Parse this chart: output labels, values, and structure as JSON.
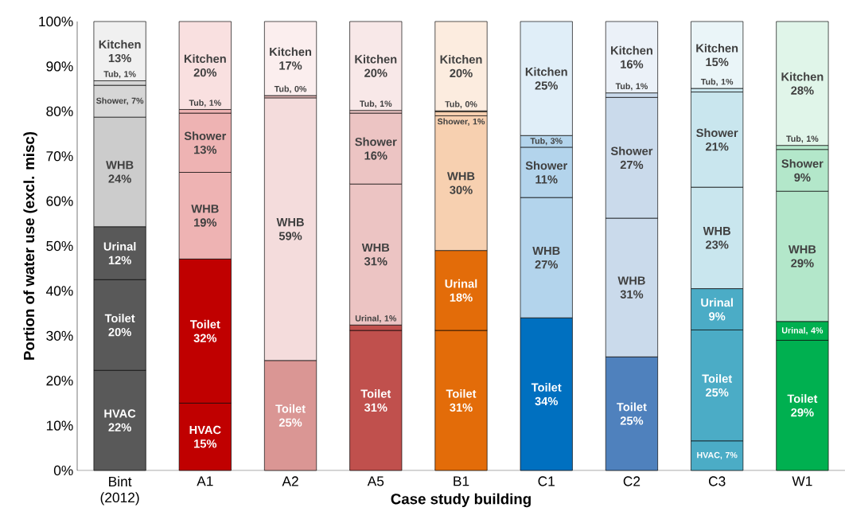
{
  "chart_data": {
    "type": "bar",
    "stacked": true,
    "xlabel": "Case study building",
    "ylabel": "Portion of water use (excl. misc)",
    "categories": [
      "Bint (2012)",
      "A1",
      "A2",
      "A5",
      "B1",
      "C1",
      "C2",
      "C3",
      "W1"
    ],
    "ylim": [
      0,
      100
    ],
    "yticks": [
      {
        "value": 0,
        "label": "0%"
      },
      {
        "value": 10,
        "label": "10%"
      },
      {
        "value": 20,
        "label": "20%"
      },
      {
        "value": 30,
        "label": "30%"
      },
      {
        "value": 40,
        "label": "40%"
      },
      {
        "value": 50,
        "label": "50%"
      },
      {
        "value": 60,
        "label": "60%"
      },
      {
        "value": 70,
        "label": "70%"
      },
      {
        "value": 80,
        "label": "80%"
      },
      {
        "value": 90,
        "label": "90%"
      },
      {
        "value": 100,
        "label": "100%"
      }
    ],
    "series": [
      {
        "colors": [
          "#595959",
          "#c00000",
          "#da9694",
          "#c0504d",
          "#e36c09",
          "#0070c0",
          "#4f81bd",
          "#4bacc6",
          "#00b050"
        ],
        "values": [
          22.3,
          15,
          0,
          0,
          0,
          0,
          0,
          6.6,
          0
        ],
        "value_labels": [
          "HVAC 22%",
          "HVAC 15%",
          null,
          null,
          null,
          null,
          null,
          "HVAC, 7%",
          null
        ]
      },
      {
        "colors": [
          "#595959",
          "#c00000",
          "#da9694",
          "#c0504d",
          "#e36c09",
          "#0070c0",
          "#4f81bd",
          "#4bacc6",
          "#00b050"
        ],
        "values": [
          20.2,
          32.1,
          24.5,
          31.2,
          31.2,
          34,
          25.3,
          24.7,
          29
        ],
        "value_labels": [
          "Toilet 20%",
          "Toilet 32%",
          "Toilet 25%",
          "Toilet 31%",
          "Toilet 31%",
          "Toilet 34%",
          "Toilet 25%",
          "Toilet 25%",
          "Toilet 29%"
        ]
      },
      {
        "colors": [
          "#595959",
          "#c00000",
          "#da9694",
          "#c0504d",
          "#e36c09",
          "#0070c0",
          "#4f81bd",
          "#4bacc6",
          "#00b050"
        ],
        "values": [
          11.8,
          0,
          0,
          1.2,
          17.8,
          0,
          0,
          9.2,
          4.2
        ],
        "value_labels": [
          "Urinal 12%",
          null,
          null,
          "Urinal, 1%",
          "Urinal 18%",
          null,
          null,
          "Urinal 9%",
          "Urinal, 4%"
        ]
      },
      {
        "colors": [
          "#cccccc",
          "#eeb3b3",
          "#f4dcdc",
          "#ecc4c3",
          "#f7d0b0",
          "#b3d4ec",
          "#cadaeb",
          "#c9e6ee",
          "#b3e7ca"
        ],
        "values": [
          24.4,
          19.3,
          58.5,
          31.4,
          30.0,
          26.8,
          30.9,
          22.6,
          29.0
        ],
        "value_labels": [
          "WHB 24%",
          "WHB 19%",
          "WHB 59%",
          "WHB 31%",
          "WHB 30%",
          "WHB 27%",
          "WHB 31%",
          "WHB 23%",
          "WHB 29%"
        ]
      },
      {
        "colors": [
          "#d6d6d6",
          "#eeb3b3",
          "#f4dcdc",
          "#ecc4c3",
          "#f7d0b0",
          "#b3d4ec",
          "#cadaeb",
          "#c9e6ee",
          "#b3e7ca"
        ],
        "values": [
          7.1,
          13.2,
          0,
          15.8,
          0.9,
          11.2,
          26.9,
          21.2,
          9.3
        ],
        "value_labels": [
          "Shower, 7%",
          "Shower 13%",
          null,
          "Shower 16%",
          "Shower, 1%",
          "Shower 11%",
          "Shower 27%",
          "Shower 21%",
          "Shower 9%"
        ]
      },
      {
        "colors": [
          "#d6d6d6",
          "#eeb3b3",
          "#e8bcbc",
          "#ecc4c3",
          "#f7d0b0",
          "#b3d4ec",
          "#cadaeb",
          "#c9e6ee",
          "#b3e7ca"
        ],
        "values": [
          1.0,
          0.8,
          0.5,
          0.6,
          0.2,
          2.6,
          1.0,
          0.8,
          0.9
        ],
        "value_labels": [
          "Tub, 1%",
          "Tub, 1%",
          "Tub, 0%",
          "Tub, 1%",
          "Tub, 0%",
          "Tub, 3%",
          "Tub, 1%",
          "Tub, 1%",
          "Tub, 1%"
        ]
      },
      {
        "colors": [
          "#f0f0f0",
          "#f9e0e0",
          "#fbeeee",
          "#f8e8e8",
          "#fcecdf",
          "#e0eef8",
          "#ebf1f8",
          "#eaf5f8",
          "#e0f5e9"
        ],
        "values": [
          13.2,
          19.6,
          16.5,
          19.8,
          19.9,
          25.4,
          15.9,
          14.9,
          27.6
        ],
        "value_labels": [
          "Kitchen 13%",
          "Kitchen 20%",
          "Kitchen 17%",
          "Kitchen 20%",
          "Kitchen 20%",
          "Kitchen 25%",
          "Kitchen 16%",
          "Kitchen 15%",
          "Kitchen 28%"
        ]
      }
    ]
  }
}
